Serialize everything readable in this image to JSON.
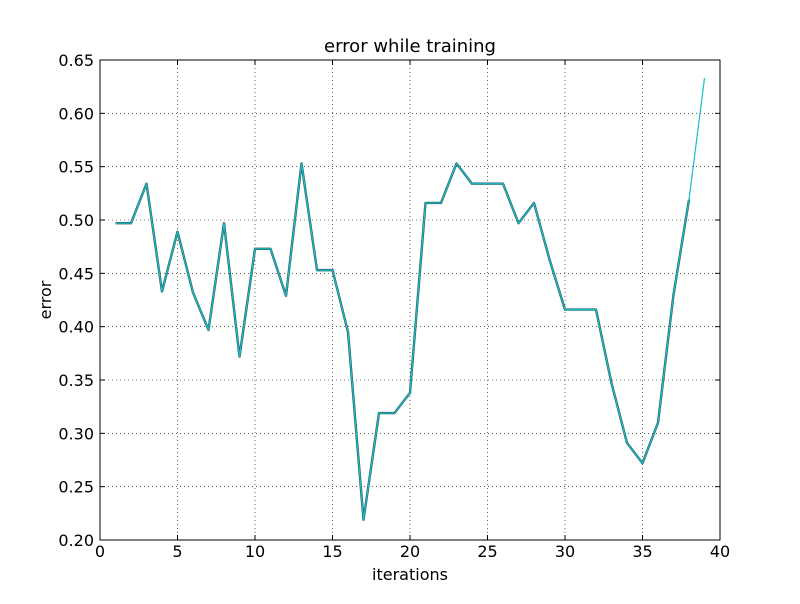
{
  "chart_data": {
    "type": "line",
    "title": "error while training",
    "xlabel": "iterations",
    "ylabel": "error",
    "xlim": [
      0,
      40
    ],
    "ylim": [
      0.2,
      0.65
    ],
    "x_ticks": [
      "0",
      "5",
      "10",
      "15",
      "20",
      "25",
      "30",
      "35",
      "40"
    ],
    "y_ticks": [
      "0.20",
      "0.25",
      "0.30",
      "0.35",
      "0.40",
      "0.45",
      "0.50",
      "0.55",
      "0.60",
      "0.65"
    ],
    "grid": true,
    "x": [
      1,
      2,
      3,
      4,
      5,
      6,
      7,
      8,
      9,
      10,
      11,
      12,
      13,
      14,
      15,
      16,
      17,
      18,
      19,
      20,
      21,
      22,
      23,
      24,
      25,
      26,
      27,
      28,
      29,
      30,
      31,
      32,
      33,
      34,
      35,
      36,
      37,
      38,
      39
    ],
    "series": [
      {
        "color": "#2c5f5a",
        "values": [
          0.497,
          0.497,
          0.534,
          0.433,
          0.489,
          0.432,
          0.397,
          0.497,
          0.372,
          0.473,
          0.473,
          0.429,
          0.553,
          0.453,
          0.453,
          0.395,
          0.219,
          0.319,
          0.319,
          0.338,
          0.516,
          0.516,
          0.553,
          0.534,
          0.534,
          0.534,
          0.497,
          0.516,
          0.463,
          0.416,
          0.416,
          0.416,
          0.347,
          0.291,
          0.272,
          0.31,
          0.43,
          0.519,
          null
        ]
      },
      {
        "color": "#17becf",
        "values": [
          0.497,
          0.497,
          0.534,
          0.433,
          0.489,
          0.432,
          0.397,
          0.497,
          0.372,
          0.473,
          0.473,
          0.429,
          0.553,
          0.453,
          0.453,
          0.395,
          0.219,
          0.319,
          0.319,
          0.338,
          0.516,
          0.516,
          0.553,
          0.534,
          0.534,
          0.534,
          0.497,
          0.516,
          0.463,
          0.416,
          0.416,
          0.416,
          0.347,
          0.291,
          0.272,
          0.31,
          0.43,
          0.519,
          0.633
        ]
      }
    ]
  }
}
